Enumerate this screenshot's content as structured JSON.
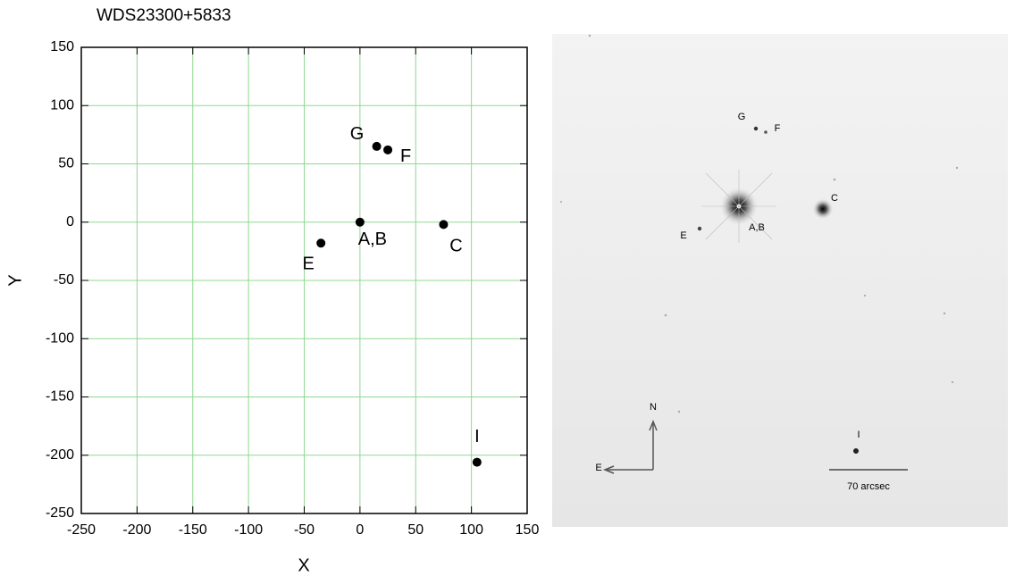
{
  "chart_data": {
    "type": "scatter",
    "title": "WDS23300+5833",
    "x_label": "X",
    "y_label": "Y",
    "x": [
      0,
      75,
      -35,
      25,
      15,
      105
    ],
    "y": [
      0,
      -2,
      -18,
      62,
      65,
      -206
    ],
    "labels": [
      "A,B",
      "C",
      "E",
      "F",
      "G",
      "I"
    ],
    "color": "#000000",
    "xlim": [
      -250,
      150
    ],
    "ylim": [
      -250,
      150
    ],
    "xticks": [
      -250,
      -200,
      -150,
      -100,
      -50,
      0,
      50,
      100,
      150
    ],
    "yticks": [
      -250,
      -200,
      -150,
      -100,
      -50,
      0,
      50,
      100,
      150
    ],
    "grid": true,
    "grid_color": "#8fd88f"
  },
  "image": {
    "stars": {
      "g": "G",
      "f": "F",
      "c": "C",
      "ab": "A,B",
      "e": "E",
      "i": "I"
    },
    "compass": {
      "north": "N",
      "east": "E"
    },
    "scale_bar": "70 arcsec"
  }
}
